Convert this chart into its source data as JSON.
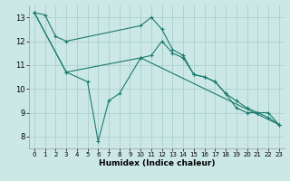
{
  "xlabel": "Humidex (Indice chaleur)",
  "bg_color": "#cce8e6",
  "grid_color": "#aacfcc",
  "line_color": "#1a7a6e",
  "xlim": [
    -0.5,
    23.5
  ],
  "ylim": [
    7.5,
    13.5
  ],
  "xticks": [
    0,
    1,
    2,
    3,
    4,
    5,
    6,
    7,
    8,
    9,
    10,
    11,
    12,
    13,
    14,
    15,
    16,
    17,
    18,
    19,
    20,
    21,
    22,
    23
  ],
  "yticks": [
    8,
    9,
    10,
    11,
    12,
    13
  ],
  "line1_x": [
    0,
    1,
    2,
    3,
    10,
    11,
    12,
    13,
    14,
    15,
    16,
    17,
    18,
    19,
    20,
    21,
    22,
    23
  ],
  "line1_y": [
    13.2,
    13.1,
    12.2,
    12.0,
    12.65,
    13.0,
    12.5,
    11.65,
    11.4,
    10.6,
    10.5,
    10.3,
    9.8,
    9.2,
    9.0,
    9.0,
    8.8,
    8.5
  ],
  "line2_x": [
    0,
    3,
    5,
    6,
    7,
    8,
    10,
    11,
    12,
    13,
    14,
    15,
    16,
    17,
    18,
    19,
    20,
    21,
    22,
    23
  ],
  "line2_y": [
    13.2,
    10.7,
    10.3,
    7.8,
    9.5,
    9.8,
    11.3,
    11.4,
    12.0,
    11.5,
    11.3,
    10.6,
    10.5,
    10.3,
    9.8,
    9.5,
    9.2,
    9.0,
    9.0,
    8.5
  ],
  "line3_x": [
    0,
    3,
    10,
    23
  ],
  "line3_y": [
    13.2,
    10.7,
    11.3,
    8.5
  ]
}
